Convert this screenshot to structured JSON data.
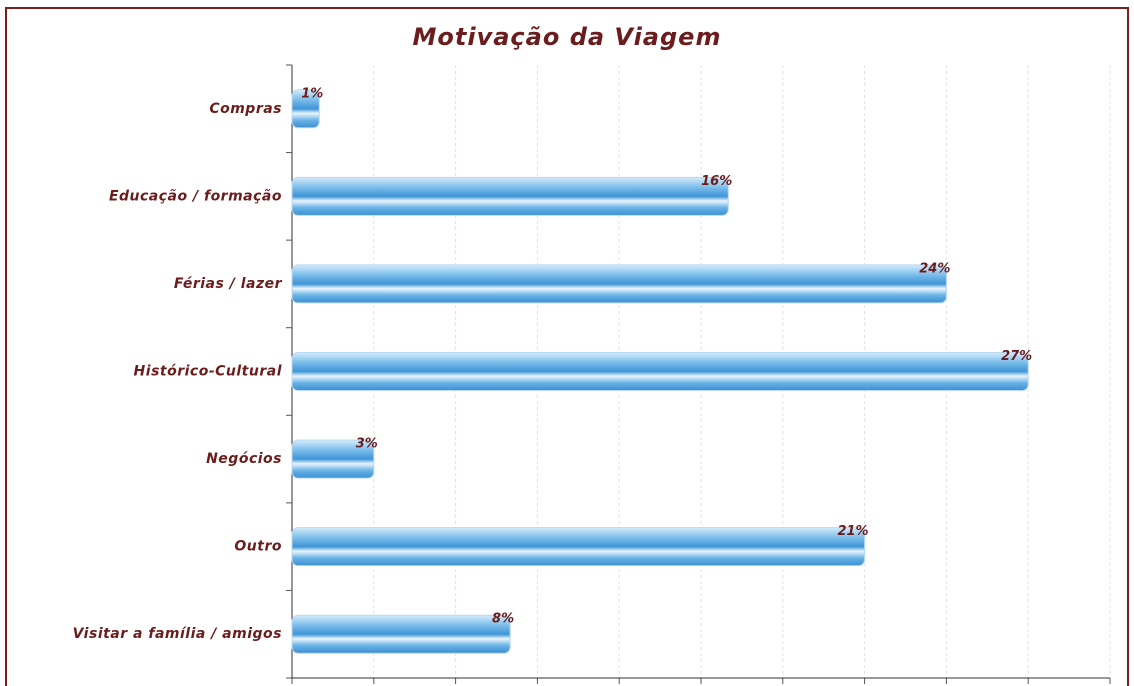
{
  "chart_data": {
    "type": "bar",
    "orientation": "horizontal",
    "title": "Motivação da Viagem",
    "categories": [
      "Compras",
      "Educação / formação",
      "Férias / lazer",
      "Histórico-Cultural",
      "Negócios",
      "Outro",
      "Visitar a família / amigos"
    ],
    "values": [
      1,
      16,
      24,
      27,
      3,
      21,
      8
    ],
    "value_labels": [
      "1%",
      "16%",
      "24%",
      "27%",
      "3%",
      "21%",
      "8%"
    ],
    "color": "#3e95d6",
    "xlim": [
      0,
      30
    ],
    "xticks": [
      0,
      3,
      6,
      9,
      12,
      15,
      18,
      21,
      24,
      27,
      30
    ],
    "grid": true
  }
}
